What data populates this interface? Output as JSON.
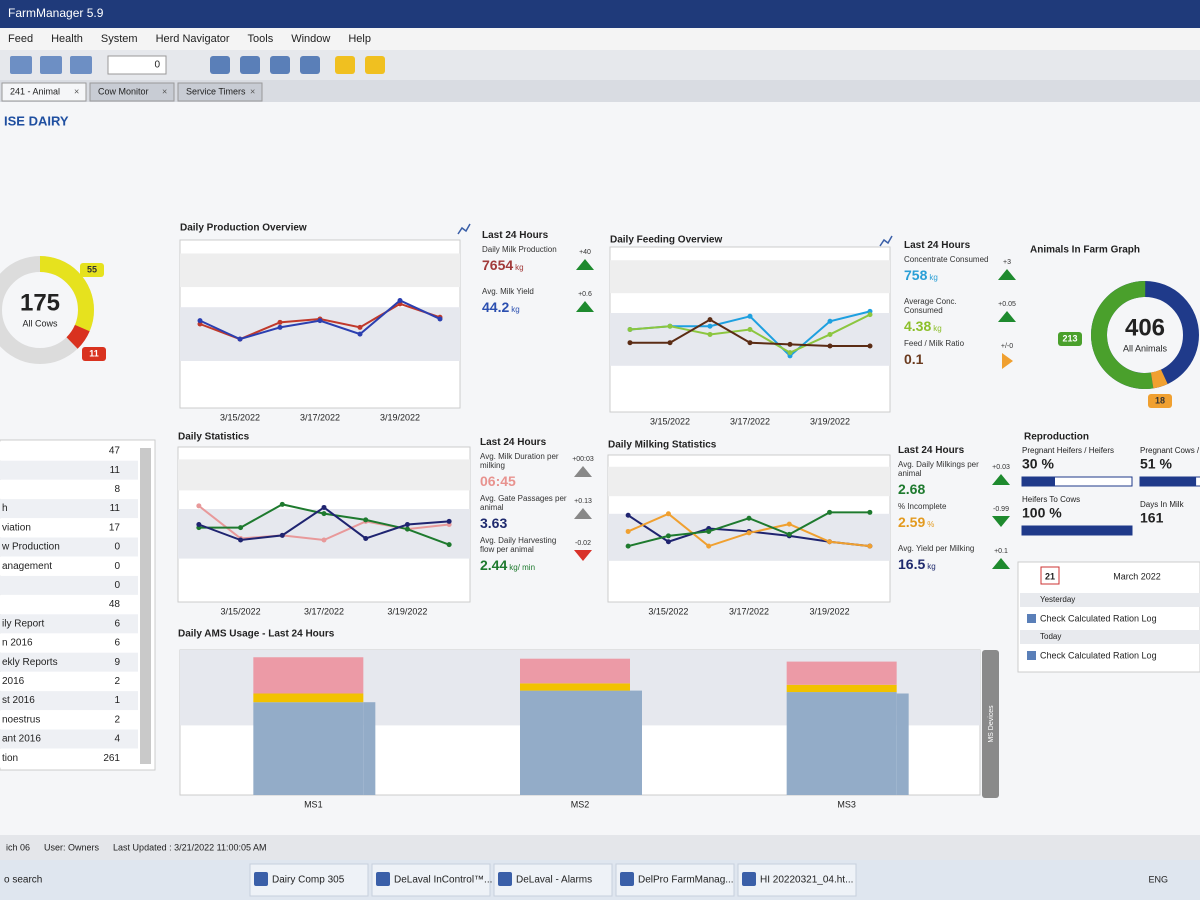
{
  "window": {
    "title": "FarmManager 5.9",
    "menu": [
      "Feed",
      "Health",
      "System",
      "Herd Navigator",
      "Tools",
      "Window",
      "Help"
    ],
    "toolbar_value": "0",
    "tabs": [
      "241 - Animal",
      "Cow Monitor",
      "Service Timers"
    ]
  },
  "header": {
    "title": "ISE DAIRY"
  },
  "cows_donut": {
    "type": "donut",
    "total": 175,
    "label": "All Cows",
    "track_color": "#dcdcdc",
    "clockwise": true,
    "segments": [
      {
        "value": 55,
        "color": "#e6e21e"
      },
      {
        "value": 11,
        "color": "#d9321f"
      }
    ]
  },
  "side_list": {
    "rows": [
      {
        "value": 47
      },
      {
        "value": 11
      },
      {
        "value": 8
      },
      {
        "label": "h",
        "value": 11
      },
      {
        "label": "viation",
        "value": 17
      },
      {
        "label": "w Production",
        "value": 0
      },
      {
        "label": "anagement",
        "value": 0
      },
      {
        "value": 0
      },
      {
        "value": 48
      },
      {
        "label": "ily Report",
        "value": 6
      },
      {
        "label": "n 2016",
        "value": 6
      },
      {
        "label": "ekly Reports",
        "value": 9
      },
      {
        "label": "2016",
        "value": 2
      },
      {
        "label": "st 2016",
        "value": 1
      },
      {
        "label": "noestrus",
        "value": 2
      },
      {
        "label": "ant 2016",
        "value": 4
      },
      {
        "label": "tion",
        "value": 261
      }
    ]
  },
  "production_chart": {
    "type": "line",
    "title": "Daily Production Overview",
    "categories": [
      null,
      "3/15/2022",
      null,
      "3/17/2022",
      null,
      "3/19/2022",
      null
    ],
    "ylim": [
      0,
      100
    ],
    "series": [
      {
        "color": "#c0392b",
        "values": [
          50,
          41,
          51,
          53,
          48,
          62,
          54
        ]
      },
      {
        "color": "#2b3fb0",
        "values": [
          52,
          41,
          48,
          52,
          44,
          64,
          53
        ]
      }
    ]
  },
  "production_kpis": {
    "heading": "Last 24 Hours",
    "items": [
      {
        "label": "Daily Milk Production",
        "value": "7654",
        "unit": "kg",
        "color": "#a23a3a",
        "delta": "+40",
        "arrow": "up",
        "arrow_color": "#1e8a2e"
      },
      {
        "label": "Avg. Milk Yield",
        "value": "44.2",
        "unit": "kg",
        "color": "#2b4fb0",
        "delta": "+0.6",
        "arrow": "up",
        "arrow_color": "#1e8a2e"
      }
    ]
  },
  "feeding_chart": {
    "type": "line",
    "title": "Daily Feeding Overview",
    "categories": [
      null,
      "3/15/2022",
      null,
      "3/17/2022",
      null,
      "3/19/2022",
      null
    ],
    "ylim": [
      0,
      100
    ],
    "series": [
      {
        "color": "#1ea0e0",
        "values": [
          50,
          52,
          52,
          58,
          34,
          55,
          61
        ]
      },
      {
        "color": "#8cc63f",
        "values": [
          50,
          52,
          47,
          50,
          36,
          47,
          59
        ]
      },
      {
        "color": "#5b2c14",
        "values": [
          42,
          42,
          56,
          42,
          41,
          40,
          40
        ]
      }
    ]
  },
  "feeding_kpis": {
    "heading": "Last 24 Hours",
    "items": [
      {
        "label": "Concentrate Consumed",
        "value": "758",
        "unit": "kg",
        "color": "#2a9fd6",
        "delta": "+3",
        "arrow": "up",
        "arrow_color": "#1e8a2e"
      },
      {
        "label": "Average Conc. Consumed",
        "value": "4.38",
        "unit": "kg",
        "color": "#8cbf2a",
        "delta": "+0.05",
        "arrow": "up",
        "arrow_color": "#1e8a2e"
      },
      {
        "label": "Feed / Milk Ratio",
        "value": "0.1",
        "color": "#6b3b1f",
        "delta": "+/-0",
        "arrow": "right",
        "arrow_color": "#f0a030"
      }
    ]
  },
  "animals_donut": {
    "type": "donut",
    "title": "Animals In Farm Graph",
    "total": 406,
    "label": "All Animals",
    "track_color": "#1f3a8a",
    "clockwise": false,
    "segments": [
      {
        "value": 213,
        "color": "#4aa02c"
      },
      {
        "value": 18,
        "color": "#f0a030"
      }
    ]
  },
  "statistics_chart": {
    "type": "line",
    "title": "Daily Statistics",
    "categories": [
      null,
      "3/15/2022",
      null,
      "3/17/2022",
      null,
      "3/19/2022",
      null
    ],
    "ylim": [
      0,
      100
    ],
    "series": [
      {
        "color": "#e8999a",
        "values": [
          62,
          41,
          43,
          40,
          52,
          47,
          50
        ]
      },
      {
        "color": "#1e7a2e",
        "values": [
          48,
          48,
          63,
          57,
          53,
          47,
          37
        ]
      },
      {
        "color": "#1f2470",
        "values": [
          50,
          40,
          43,
          61,
          41,
          50,
          52
        ]
      }
    ]
  },
  "statistics_kpis": {
    "heading": "Last 24 Hours",
    "items": [
      {
        "label": "Avg. Milk Duration per milking",
        "value": "06:45",
        "color": "#e8938f",
        "delta": "+00:03",
        "arrow": "up",
        "arrow_color": "#888888"
      },
      {
        "label": "Avg. Gate Passages per animal",
        "value": "3.63",
        "color": "#1f2a6e",
        "delta": "+0.13",
        "arrow": "up",
        "arrow_color": "#888888"
      },
      {
        "label": "Avg. Daily Harvesting flow per animal",
        "value": "2.44",
        "unit": "kg/ min",
        "color": "#1e7a2e",
        "delta": "-0.02",
        "arrow": "down",
        "arrow_color": "#d9322a"
      }
    ]
  },
  "milking_chart": {
    "type": "line",
    "title": "Daily Milking Statistics",
    "categories": [
      null,
      "3/15/2022",
      null,
      "3/17/2022",
      null,
      "3/19/2022",
      null
    ],
    "ylim": [
      0,
      100
    ],
    "series": [
      {
        "color": "#1f2470",
        "values": [
          59,
          41,
          50,
          48,
          45,
          41,
          38
        ]
      },
      {
        "color": "#f0a030",
        "values": [
          48,
          60,
          38,
          47,
          53,
          41,
          38
        ]
      },
      {
        "color": "#1e7a2e",
        "values": [
          38,
          45,
          48,
          57,
          46,
          61,
          61
        ]
      }
    ]
  },
  "milking_kpis": {
    "heading": "Last 24 Hours",
    "items": [
      {
        "label": "Avg. Daily Milkings per animal",
        "value": "2.68",
        "color": "#1e7a2e",
        "delta": "+0.03",
        "arrow": "up",
        "arrow_color": "#1e8a2e"
      },
      {
        "label": "% Incomplete",
        "value": "2.59",
        "unit": "%",
        "color": "#e39a1f",
        "delta": "-0.99",
        "arrow": "down",
        "arrow_color": "#1e8a2e"
      },
      {
        "label": "Avg. Yield per Milking",
        "value": "16.5",
        "unit": "kg",
        "color": "#1f2a6e",
        "delta": "+0.1",
        "arrow": "up",
        "arrow_color": "#1e8a2e"
      }
    ]
  },
  "reproduction": {
    "title": "Reproduction",
    "xlim": [
      0,
      100
    ],
    "bar_color": "#1f3a8a",
    "items": [
      {
        "label": "Pregnant Heifers / Heifers",
        "value": 30,
        "value_label": "30 %",
        "bar": true
      },
      {
        "label": "Pregnant Cows /",
        "value": 51,
        "value_label": "51 %",
        "bar": true
      },
      {
        "label": "Heifers To Cows",
        "value": 100,
        "value_label": "100 %",
        "bar": true
      },
      {
        "label": "Days In Milk",
        "value": 161
      }
    ]
  },
  "calendar": {
    "day": "21",
    "month": "March 2022",
    "groups": [
      {
        "heading": "Yesterday",
        "entry": "Check Calculated Ration Log"
      },
      {
        "heading": "Today",
        "entry": "Check Calculated Ration Log"
      }
    ]
  },
  "ams_chart": {
    "type": "stacked_bar",
    "title": "Daily AMS Usage - Last 24 Hours",
    "categories": [
      "MS1",
      "MS2",
      "MS3"
    ],
    "ylim": [
      0,
      100
    ],
    "side_label": "MS Devices",
    "series": [
      {
        "color": "#93acc8",
        "values": [
          64,
          72,
          71
        ]
      },
      {
        "color": "#f2c200",
        "values": [
          6,
          5,
          5
        ]
      },
      {
        "color": "#ec9aa6",
        "values": [
          25,
          17,
          16
        ]
      }
    ],
    "overlay": {
      "color": "#93acc8",
      "values": [
        64,
        72,
        70
      ]
    }
  },
  "status_bar": [
    "ich 06",
    "User: Owners",
    "Last Updated : 3/21/2022 11:00:05 AM"
  ],
  "taskbar": {
    "items": [
      "o search",
      "Dairy Comp 305",
      "DeLaval InControl™...",
      "DeLaval - Alarms",
      "DelPro FarmManag...",
      "HI 20220321_04.ht..."
    ],
    "language": "ENG"
  }
}
